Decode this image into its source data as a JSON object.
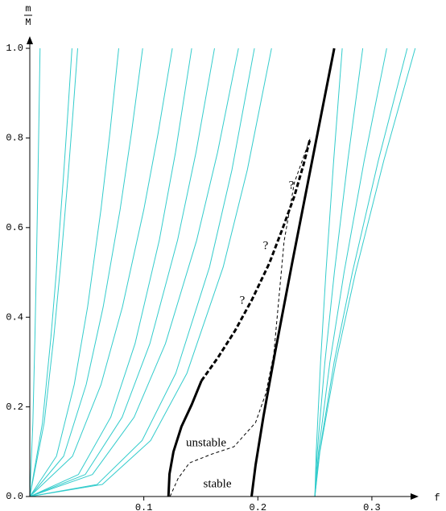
{
  "chart_data": {
    "type": "line",
    "x_label": "f",
    "y_label": {
      "numerator": "m",
      "denominator": "M"
    },
    "xlim": [
      0,
      0.341
    ],
    "ylim": [
      0,
      1.027
    ],
    "xticks": [
      0.1,
      0.2,
      0.3
    ],
    "yticks": [
      {
        "value": 0,
        "label": "0.0"
      },
      0.2,
      0.4,
      0.6,
      0.8,
      {
        "value": 1,
        "label": "1.0"
      }
    ],
    "annotations": [
      "?",
      "?",
      "?",
      "unstable",
      "stable"
    ],
    "series": [
      {
        "color": "#33cccc",
        "line_width": 1,
        "x": [
          0,
          0.0027,
          0.0045,
          0.00585,
          0.0072,
          0.0081,
          0.009
        ],
        "values": [
          0,
          0.164,
          0.354,
          0.524,
          0.716,
          0.854,
          1
        ]
      },
      {
        "color": "#33cccc",
        "line_width": 1,
        "x": [
          0,
          0.0111,
          0.0185,
          0.02405,
          0.0296,
          0.0333,
          0.037
        ],
        "values": [
          0,
          0.164,
          0.354,
          0.524,
          0.716,
          0.854,
          1
        ]
      },
      {
        "color": "#33cccc",
        "line_width": 1,
        "x": [
          0,
          0.0126,
          0.021,
          0.0273,
          0.0336,
          0.0378,
          0.042
        ],
        "values": [
          0,
          0.164,
          0.354,
          0.524,
          0.716,
          0.854,
          1
        ]
      },
      {
        "color": "#33cccc",
        "line_width": 1,
        "x": [
          0,
          0.0234,
          0.039,
          0.0507,
          0.0624,
          0.0702,
          0.078
        ],
        "values": [
          0,
          0.09,
          0.25,
          0.423,
          0.64,
          0.81,
          1
        ]
      },
      {
        "color": "#33cccc",
        "line_width": 1,
        "x": [
          0,
          0.0297,
          0.0495,
          0.06435,
          0.0792,
          0.0891,
          0.099
        ],
        "values": [
          0,
          0.09,
          0.25,
          0.423,
          0.64,
          0.81,
          1
        ]
      },
      {
        "color": "#33cccc",
        "line_width": 1,
        "x": [
          0,
          0.0375,
          0.0625,
          0.08125,
          0.1,
          0.1125,
          0.125
        ],
        "values": [
          0,
          0.09,
          0.25,
          0.423,
          0.64,
          0.81,
          1
        ]
      },
      {
        "color": "#33cccc",
        "line_width": 1,
        "x": [
          0,
          0.0426,
          0.071,
          0.0923,
          0.1136,
          0.1278,
          0.142
        ],
        "values": [
          0,
          0.049,
          0.177,
          0.341,
          0.572,
          0.768,
          1
        ]
      },
      {
        "color": "#33cccc",
        "line_width": 1,
        "x": [
          0,
          0.0486,
          0.081,
          0.1053,
          0.1296,
          0.1458,
          0.162
        ],
        "values": [
          0,
          0.049,
          0.177,
          0.341,
          0.572,
          0.768,
          1
        ]
      },
      {
        "color": "#33cccc",
        "line_width": 1,
        "x": [
          0,
          0.0549,
          0.0915,
          0.11895,
          0.1464,
          0.1647,
          0.183
        ],
        "values": [
          0,
          0.049,
          0.177,
          0.341,
          0.572,
          0.768,
          1
        ]
      },
      {
        "color": "#33cccc",
        "line_width": 1,
        "x": [
          0,
          0.0591,
          0.0985,
          0.12805,
          0.1576,
          0.1773,
          0.197
        ],
        "values": [
          0,
          0.027,
          0.125,
          0.275,
          0.512,
          0.729,
          1
        ]
      },
      {
        "color": "#33cccc",
        "line_width": 1,
        "x": [
          0,
          0.0636,
          0.106,
          0.1378,
          0.1696,
          0.1908,
          0.212
        ],
        "values": [
          0,
          0.027,
          0.125,
          0.275,
          0.512,
          0.729,
          1
        ]
      },
      {
        "color": "#33cccc",
        "line_width": 1,
        "x": [
          0.25,
          0.2512,
          0.255,
          0.2597,
          0.2665,
          0.274
        ],
        "values": [
          0,
          0.1,
          0.3,
          0.5,
          0.75,
          1
        ]
      },
      {
        "color": "#33cccc",
        "line_width": 1,
        "x": [
          0.25,
          0.2521,
          0.2588,
          0.2671,
          0.2789,
          0.292
        ],
        "values": [
          0,
          0.1,
          0.3,
          0.5,
          0.75,
          1
        ]
      },
      {
        "color": "#33cccc",
        "line_width": 1,
        "x": [
          0.25,
          0.2532,
          0.2632,
          0.2756,
          0.2933,
          0.313
        ],
        "values": [
          0,
          0.1,
          0.3,
          0.5,
          0.75,
          1
        ]
      },
      {
        "color": "#33cccc",
        "line_width": 1,
        "x": [
          0.25,
          0.2541,
          0.2669,
          0.2829,
          0.3057,
          0.331
        ],
        "values": [
          0,
          0.1,
          0.3,
          0.5,
          0.75,
          1
        ]
      },
      {
        "color": "#33cccc",
        "line_width": 1,
        "x": [
          0.25,
          0.2544,
          0.2684,
          0.2857,
          0.3105,
          0.338
        ],
        "values": [
          0,
          0.1,
          0.3,
          0.5,
          0.75,
          1
        ]
      },
      {
        "color": "#000000",
        "line_width": 1,
        "dashed": true,
        "x": [
          0.123,
          0.13,
          0.14,
          0.16,
          0.179,
          0.198,
          0.207,
          0.214,
          0.223,
          0.232,
          0.246
        ],
        "values": [
          0,
          0.04,
          0.075,
          0.095,
          0.111,
          0.165,
          0.23,
          0.318,
          0.569,
          0.7,
          0.8
        ]
      },
      {
        "color": "#000000",
        "line_width": 3,
        "x": [
          0.1216,
          0.1225,
          0.126,
          0.133,
          0.142,
          0.1505
        ],
        "values": [
          0,
          0.05,
          0.1,
          0.156,
          0.205,
          0.258
        ]
      },
      {
        "color": "#000000",
        "line_width": 3,
        "dashed": true,
        "x": [
          0.1505,
          0.165,
          0.18,
          0.195,
          0.21,
          0.222,
          0.232,
          0.24,
          0.246
        ],
        "values": [
          0.258,
          0.31,
          0.37,
          0.44,
          0.52,
          0.6,
          0.67,
          0.74,
          0.8
        ]
      },
      {
        "color": "#000000",
        "line_width": 3,
        "x": [
          0.1945,
          0.198,
          0.205,
          0.215,
          0.23,
          0.25,
          0.267
        ],
        "values": [
          0,
          0.07,
          0.18,
          0.32,
          0.52,
          0.78,
          1
        ]
      }
    ]
  }
}
